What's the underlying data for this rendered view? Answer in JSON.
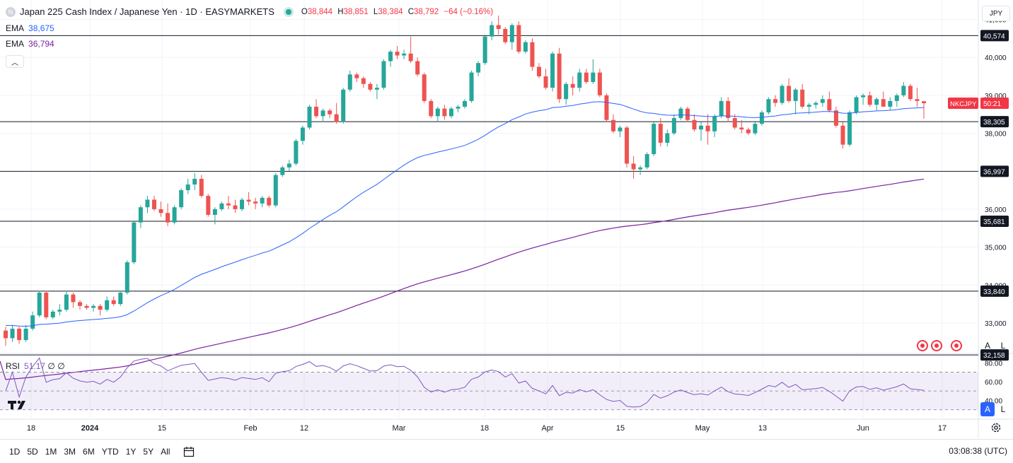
{
  "header": {
    "title": "Japan 225 Cash Index / Japanese Yen · 1D · EASYMARKETS",
    "open_label": "O",
    "open": "38,844",
    "high_label": "H",
    "high": "38,851",
    "low_label": "L",
    "low": "38,384",
    "close_label": "C",
    "close": "38,792",
    "change": "−64 (−0.16%)",
    "symbol_letter": "N"
  },
  "indicators": [
    {
      "name": "EMA",
      "value": "38,675",
      "color": "#2962ff"
    },
    {
      "name": "EMA",
      "value": "36,794",
      "color": "#7b1fa2"
    }
  ],
  "rsi": {
    "label": "RSI",
    "value": "51.17",
    "extra1": "∅",
    "extra2": "∅",
    "color": "#7e57c2"
  },
  "currency": "JPY",
  "scale_buttons": {
    "auto": "A",
    "log": "L"
  },
  "ticker_tag": {
    "symbol": "NKCJPY",
    "countdown": "50:21",
    "color": "#f23645"
  },
  "timeframes": [
    "1D",
    "5D",
    "1M",
    "3M",
    "6M",
    "YTD",
    "1Y",
    "5Y",
    "All"
  ],
  "clock": "03:08:38 (UTC)",
  "icons": {
    "calendar": "calendar-range-icon",
    "settings": "gear-icon",
    "logo": "tradingview-logo-icon",
    "collapse": "chevron-up-icon"
  },
  "chart_data": {
    "type": "candlestick",
    "price_axis": {
      "min": 32000,
      "max": 41000,
      "ticks": [
        "41,000",
        "40,000",
        "39,000",
        "38,000",
        "36,000",
        "35,000",
        "34,000",
        "33,000"
      ]
    },
    "horizontal_levels": [
      "40,574",
      "38,305",
      "36,997",
      "35,681",
      "33,840",
      "32,158"
    ],
    "x_axis_labels": [
      "18",
      "2024",
      "15",
      "Feb",
      "12",
      "Mar",
      "18",
      "Apr",
      "15",
      "May",
      "13",
      "Jun",
      "17"
    ],
    "candles": [
      [
        32800,
        32900,
        32400,
        32600
      ],
      [
        32600,
        32950,
        32500,
        32850
      ],
      [
        32850,
        32900,
        32450,
        32550
      ],
      [
        32550,
        32950,
        32500,
        32850
      ],
      [
        32850,
        33300,
        32800,
        33200
      ],
      [
        33200,
        33850,
        33150,
        33800
      ],
      [
        33800,
        33850,
        33100,
        33150
      ],
      [
        33150,
        33350,
        33100,
        33300
      ],
      [
        33300,
        33500,
        33200,
        33350
      ],
      [
        33350,
        33850,
        33300,
        33750
      ],
      [
        33750,
        33800,
        33400,
        33550
      ],
      [
        33550,
        33600,
        33350,
        33450
      ],
      [
        33450,
        33500,
        33350,
        33400
      ],
      [
        33400,
        33500,
        33300,
        33450
      ],
      [
        33450,
        33500,
        33200,
        33350
      ],
      [
        33350,
        33700,
        33300,
        33600
      ],
      [
        33600,
        33700,
        33450,
        33500
      ],
      [
        33500,
        33850,
        33450,
        33800
      ],
      [
        33800,
        34650,
        33750,
        34600
      ],
      [
        34600,
        35700,
        34550,
        35650
      ],
      [
        35650,
        36100,
        35500,
        36050
      ],
      [
        36050,
        36350,
        35900,
        36250
      ],
      [
        36250,
        36350,
        35950,
        36000
      ],
      [
        36000,
        36200,
        35800,
        35900
      ],
      [
        35900,
        36150,
        35550,
        35650
      ],
      [
        35650,
        36100,
        35600,
        36050
      ],
      [
        36050,
        36550,
        36000,
        36500
      ],
      [
        36500,
        36800,
        36400,
        36650
      ],
      [
        36650,
        36950,
        36500,
        36800
      ],
      [
        36800,
        36900,
        36300,
        36350
      ],
      [
        36350,
        36400,
        35800,
        35850
      ],
      [
        35850,
        36050,
        35600,
        36000
      ],
      [
        36000,
        36200,
        35950,
        36150
      ],
      [
        36150,
        36350,
        36000,
        36100
      ],
      [
        36100,
        36250,
        35900,
        36000
      ],
      [
        36000,
        36300,
        35950,
        36250
      ],
      [
        36250,
        36450,
        36100,
        36200
      ],
      [
        36200,
        36300,
        36000,
        36150
      ],
      [
        36150,
        36350,
        36050,
        36300
      ],
      [
        36300,
        36350,
        36050,
        36100
      ],
      [
        36100,
        36950,
        36050,
        36900
      ],
      [
        36900,
        37150,
        36850,
        37100
      ],
      [
        37100,
        37300,
        37000,
        37200
      ],
      [
        37200,
        37850,
        37150,
        37800
      ],
      [
        37800,
        38200,
        37700,
        38150
      ],
      [
        38150,
        38750,
        38100,
        38700
      ],
      [
        38700,
        38900,
        38400,
        38450
      ],
      [
        38450,
        38650,
        38300,
        38600
      ],
      [
        38600,
        38650,
        38400,
        38500
      ],
      [
        38500,
        38800,
        38250,
        38300
      ],
      [
        38300,
        39200,
        38250,
        39150
      ],
      [
        39150,
        39650,
        39100,
        39550
      ],
      [
        39550,
        39600,
        39350,
        39450
      ],
      [
        39450,
        39500,
        39200,
        39300
      ],
      [
        39300,
        39350,
        39100,
        39150
      ],
      [
        39150,
        39300,
        38900,
        39200
      ],
      [
        39200,
        39950,
        39150,
        39900
      ],
      [
        39900,
        40200,
        39750,
        40150
      ],
      [
        40150,
        40300,
        39950,
        40050
      ],
      [
        40050,
        40200,
        39950,
        40100
      ],
      [
        40100,
        40550,
        39850,
        39900
      ],
      [
        39900,
        40000,
        39500,
        39550
      ],
      [
        39550,
        39600,
        38800,
        38850
      ],
      [
        38850,
        38900,
        38400,
        38450
      ],
      [
        38450,
        38700,
        38300,
        38650
      ],
      [
        38650,
        38750,
        38350,
        38450
      ],
      [
        38450,
        38700,
        38400,
        38650
      ],
      [
        38650,
        38750,
        38550,
        38700
      ],
      [
        38700,
        38900,
        38650,
        38850
      ],
      [
        38850,
        39650,
        38800,
        39600
      ],
      [
        39600,
        39900,
        39500,
        39850
      ],
      [
        39850,
        40600,
        39800,
        40550
      ],
      [
        40550,
        40950,
        40450,
        40850
      ],
      [
        40850,
        41100,
        40600,
        40750
      ],
      [
        40750,
        40800,
        40350,
        40400
      ],
      [
        40400,
        40900,
        40200,
        40850
      ],
      [
        40850,
        40950,
        40100,
        40150
      ],
      [
        40150,
        40450,
        40100,
        40400
      ],
      [
        40400,
        40500,
        39650,
        39750
      ],
      [
        39750,
        39850,
        39450,
        39500
      ],
      [
        39500,
        39700,
        39150,
        39200
      ],
      [
        39200,
        40150,
        39100,
        40100
      ],
      [
        40100,
        40250,
        38800,
        38900
      ],
      [
        38900,
        39350,
        38750,
        39300
      ],
      [
        39300,
        39500,
        39000,
        39200
      ],
      [
        39200,
        39700,
        39100,
        39600
      ],
      [
        39600,
        39700,
        39300,
        39350
      ],
      [
        39350,
        39950,
        39300,
        39600
      ],
      [
        39600,
        39700,
        38950,
        39000
      ],
      [
        39000,
        39050,
        38300,
        38350
      ],
      [
        38350,
        38500,
        38000,
        38050
      ],
      [
        38050,
        38200,
        37900,
        38150
      ],
      [
        38150,
        38200,
        37100,
        37200
      ],
      [
        37200,
        37400,
        36800,
        37050
      ],
      [
        37050,
        37150,
        36900,
        37100
      ],
      [
        37100,
        37500,
        37050,
        37450
      ],
      [
        37450,
        38300,
        37400,
        38250
      ],
      [
        38250,
        38400,
        37650,
        37750
      ],
      [
        37750,
        38100,
        37650,
        38000
      ],
      [
        38000,
        38500,
        37950,
        38400
      ],
      [
        38400,
        38700,
        38350,
        38650
      ],
      [
        38650,
        38700,
        38300,
        38350
      ],
      [
        38350,
        38500,
        38050,
        38100
      ],
      [
        38100,
        38300,
        37800,
        38200
      ],
      [
        38200,
        38500,
        37700,
        38050
      ],
      [
        38050,
        38500,
        37900,
        38450
      ],
      [
        38450,
        38950,
        38400,
        38850
      ],
      [
        38850,
        38950,
        38300,
        38400
      ],
      [
        38400,
        38500,
        38100,
        38150
      ],
      [
        38150,
        38350,
        38000,
        38100
      ],
      [
        38100,
        38150,
        37950,
        38000
      ],
      [
        38000,
        38300,
        37950,
        38250
      ],
      [
        38250,
        38600,
        38200,
        38550
      ],
      [
        38550,
        38950,
        38500,
        38900
      ],
      [
        38900,
        39000,
        38700,
        38800
      ],
      [
        38800,
        39300,
        38750,
        39250
      ],
      [
        39250,
        39450,
        38800,
        38850
      ],
      [
        38850,
        39200,
        38500,
        39150
      ],
      [
        39150,
        39300,
        38650,
        38700
      ],
      [
        38700,
        38800,
        38500,
        38750
      ],
      [
        38750,
        38850,
        38650,
        38800
      ],
      [
        38800,
        39000,
        38700,
        38900
      ],
      [
        38900,
        39100,
        38550,
        38600
      ],
      [
        38600,
        38700,
        38150,
        38200
      ],
      [
        38200,
        38300,
        37600,
        37700
      ],
      [
        37700,
        38600,
        37650,
        38550
      ],
      [
        38550,
        39000,
        38500,
        38950
      ],
      [
        38950,
        39050,
        38750,
        39000
      ],
      [
        39000,
        39100,
        38700,
        38750
      ],
      [
        38750,
        38950,
        38600,
        38900
      ],
      [
        38900,
        39100,
        38750,
        38700
      ],
      [
        38700,
        38950,
        38600,
        38850
      ],
      [
        38850,
        39050,
        38700,
        39000
      ],
      [
        39000,
        39350,
        38950,
        39250
      ],
      [
        39250,
        39300,
        38850,
        38900
      ],
      [
        38900,
        39200,
        38700,
        38850
      ],
      [
        38844,
        38851,
        38384,
        38792
      ]
    ],
    "ema_fast_last": 38675,
    "ema_slow_last": 36794,
    "rsi_axis": {
      "min": 20,
      "max": 90,
      "ticks": [
        "80.00",
        "60.00",
        "40.00"
      ],
      "band_upper": 70,
      "band_lower": 30
    },
    "grid": true
  }
}
